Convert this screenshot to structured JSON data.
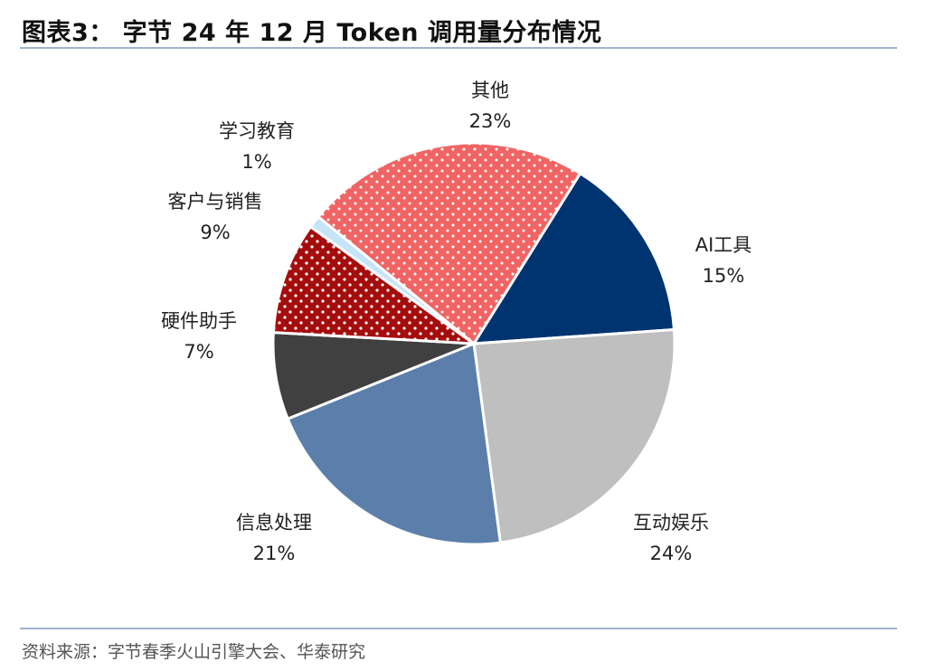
{
  "header": {
    "title": "图表3：  字节 24 年 12 月 Token 调用量分布情况"
  },
  "footer": {
    "source": "资料来源：字节春季火山引擎大会、华泰研究"
  },
  "chart_data": {
    "type": "pie",
    "title": "图表3：  字节 24 年 12 月 Token 调用量分布情况",
    "unit": "%",
    "start_angle_deg": 32,
    "direction": "clockwise",
    "slices": [
      {
        "label": "AI工具",
        "value": 15,
        "value_label": "15%",
        "color": "#003471",
        "pattern": "none"
      },
      {
        "label": "互动娱乐",
        "value": 24,
        "value_label": "24%",
        "color": "#bfbfbf",
        "pattern": "none"
      },
      {
        "label": "信息处理",
        "value": 21,
        "value_label": "21%",
        "color": "#5b7faa",
        "pattern": "none"
      },
      {
        "label": "硬件助手",
        "value": 7,
        "value_label": "7%",
        "color": "#404040",
        "pattern": "none"
      },
      {
        "label": "客户与销售",
        "value": 9,
        "value_label": "9%",
        "color": "#a50d0d",
        "pattern": "dots"
      },
      {
        "label": "学习教育",
        "value": 1,
        "value_label": "1%",
        "color": "#c6e4f7",
        "pattern": "none"
      },
      {
        "label": "其他",
        "value": 23,
        "value_label": "23%",
        "color": "#f06464",
        "pattern": "dots"
      }
    ]
  }
}
